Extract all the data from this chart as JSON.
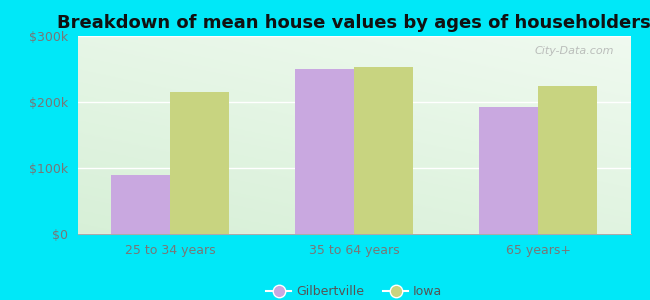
{
  "title": "Breakdown of mean house values by ages of householders",
  "categories": [
    "25 to 34 years",
    "35 to 64 years",
    "65 years+"
  ],
  "gilbertville": [
    90000,
    250000,
    193000
  ],
  "iowa": [
    215000,
    253000,
    225000
  ],
  "gilbertville_color": "#c9a8e0",
  "iowa_color": "#c8d480",
  "background_outer": "#00e8f8",
  "background_inner_top": "#e8f8f0",
  "background_inner_bottom": "#d0f0d8",
  "ylim": [
    0,
    300000
  ],
  "yticks": [
    0,
    100000,
    200000,
    300000
  ],
  "ytick_labels": [
    "$0",
    "$100k",
    "$200k",
    "$300k"
  ],
  "legend_labels": [
    "Gilbertville",
    "Iowa"
  ],
  "bar_width": 0.32,
  "title_fontsize": 13,
  "watermark": "City-Data.com"
}
